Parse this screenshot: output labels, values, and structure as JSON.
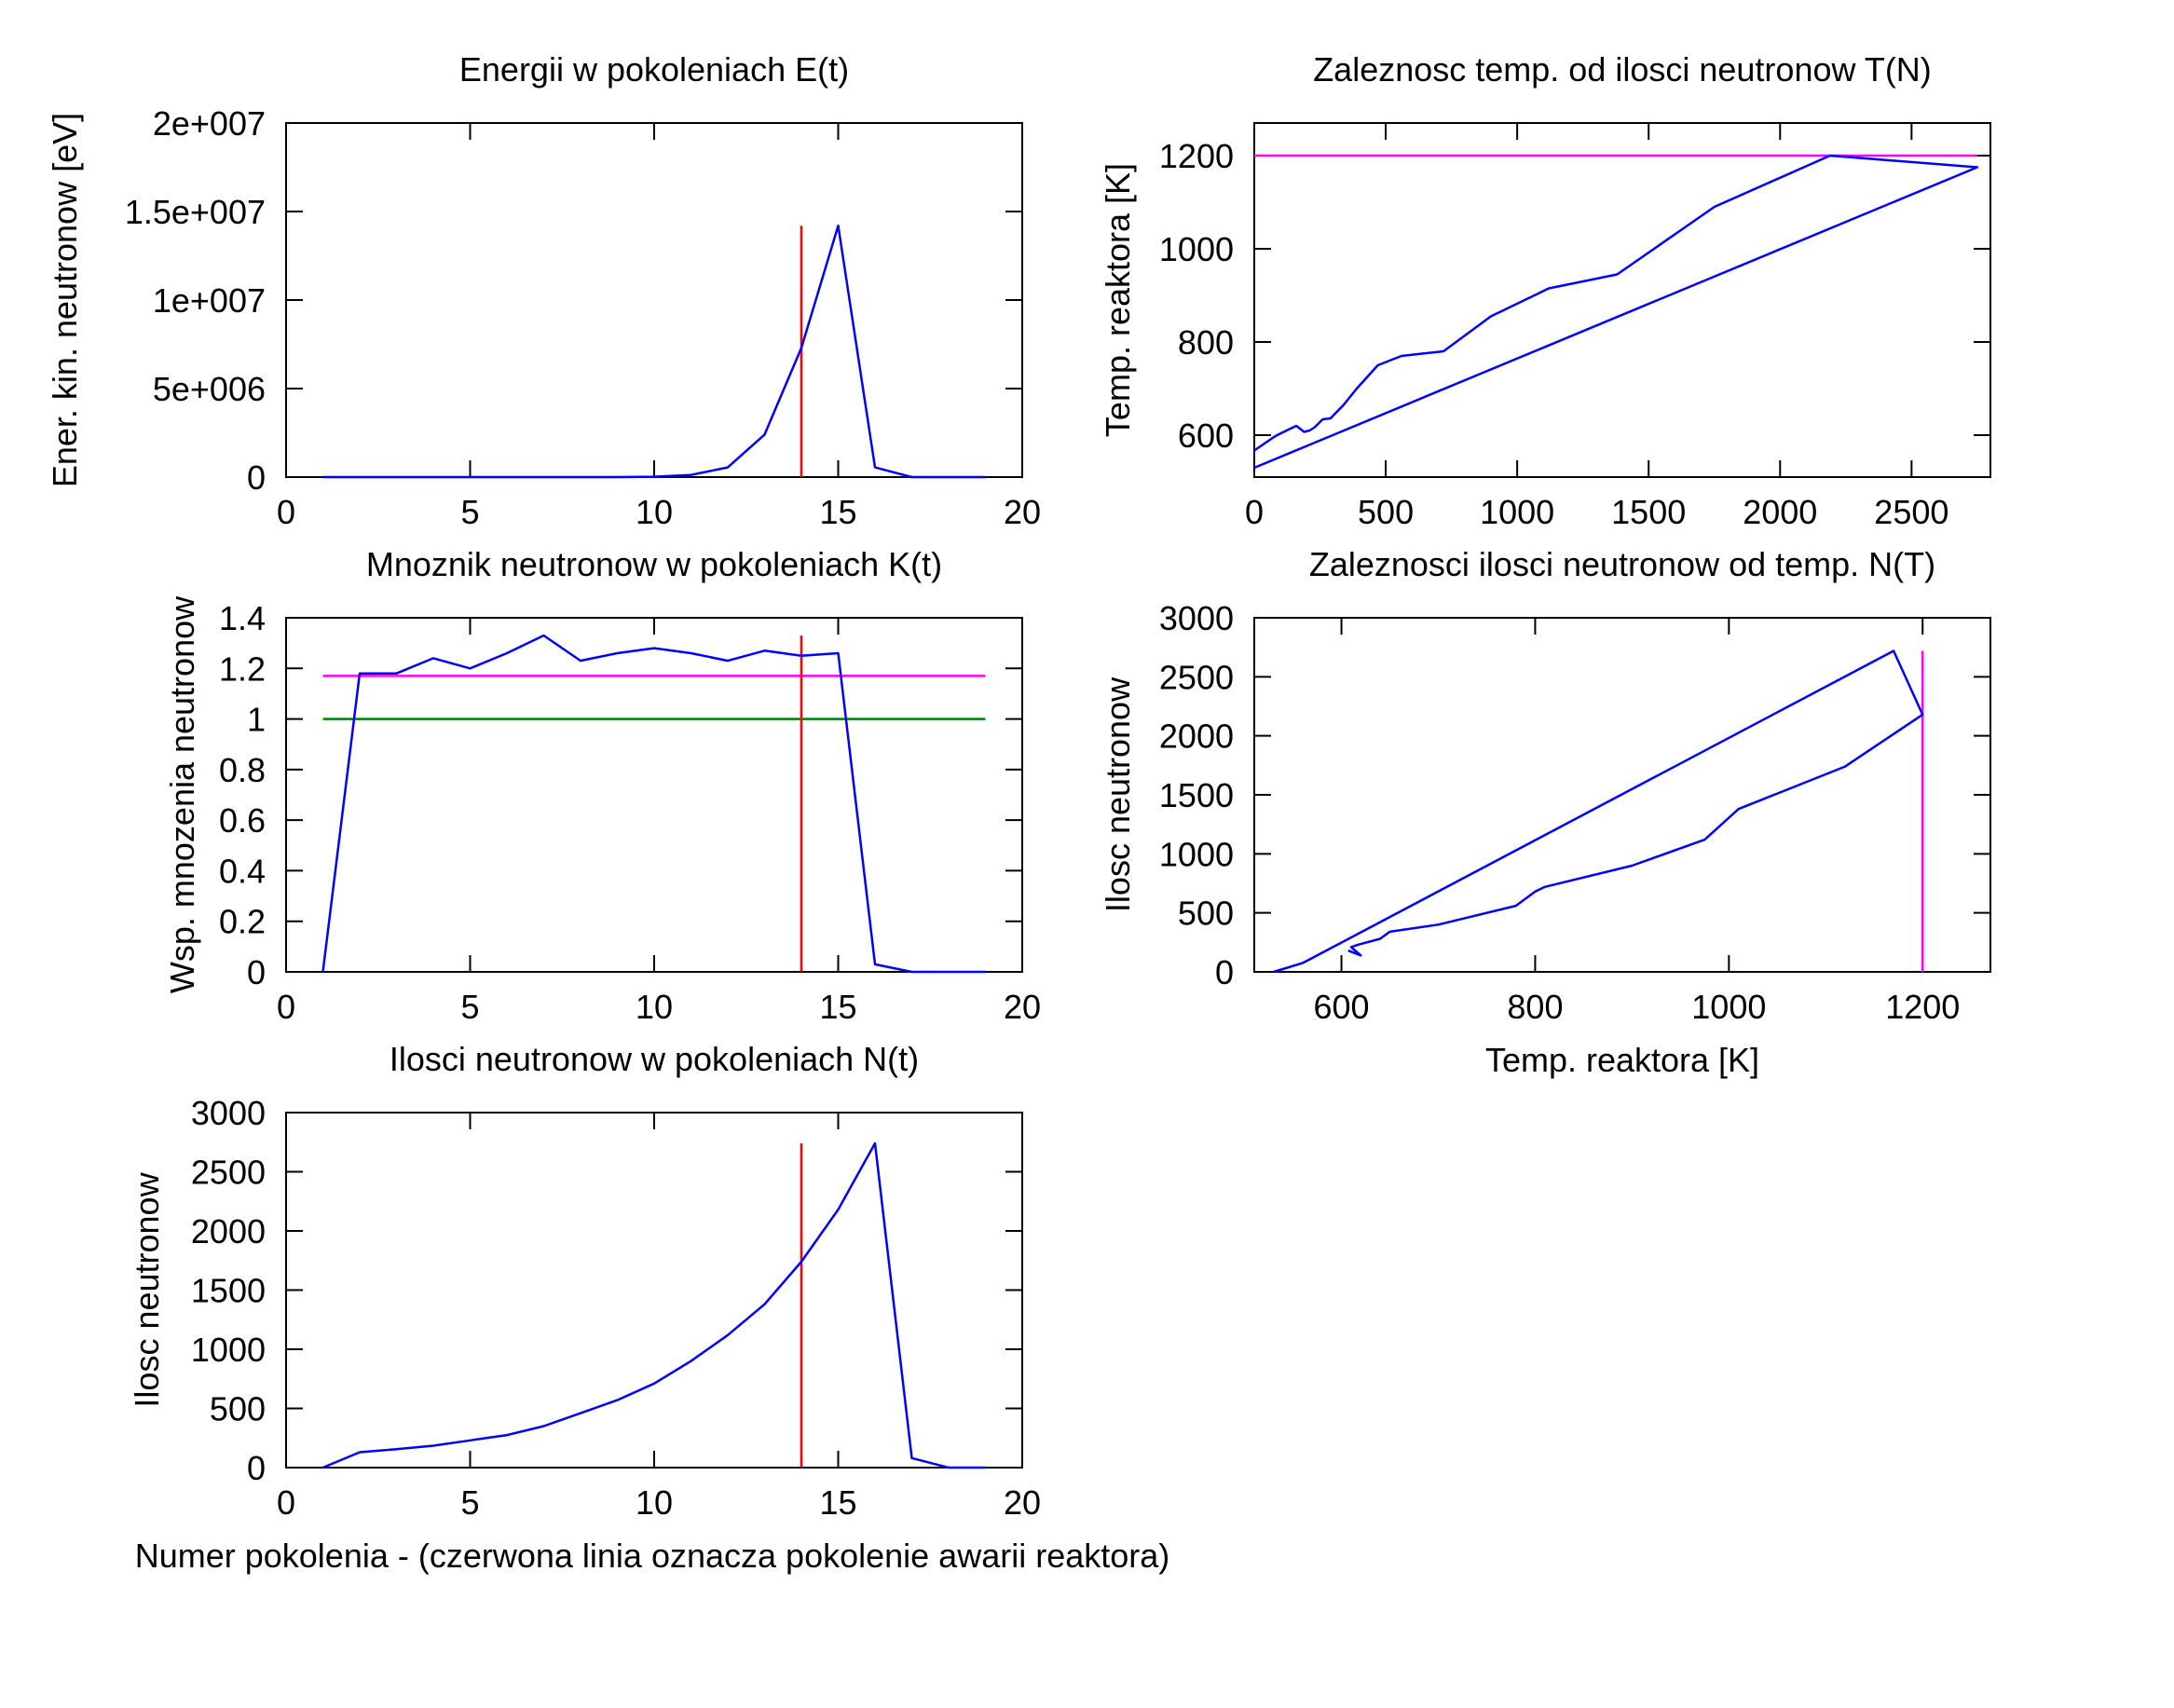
{
  "figure_note": "Numer pokolenia - (czerwona linia oznacza pokolenie awarii reaktora)",
  "chart_data": [
    {
      "id": "energy",
      "type": "line",
      "title": "Energii w pokoleniach E(t)",
      "xlabel": "",
      "ylabel": "Ener. kin. neutronow [eV]",
      "xlim": [
        0,
        20
      ],
      "ylim": [
        0,
        20000000
      ],
      "xticks": [
        0,
        5,
        10,
        15,
        20
      ],
      "xtick_labels": [
        "0",
        "5",
        "10",
        "15",
        "20"
      ],
      "yticks": [
        0,
        5000000,
        10000000,
        15000000,
        20000000
      ],
      "ytick_labels": [
        "0",
        "5e+006",
        "1e+007",
        "1.5e+007",
        "2e+007"
      ],
      "series": [
        {
          "color": "#0000ff",
          "x": [
            1,
            2,
            3,
            4,
            5,
            6,
            7,
            8,
            9,
            10,
            11,
            12,
            13,
            14,
            15,
            16,
            17,
            18,
            19
          ],
          "y": [
            0,
            0,
            0,
            0,
            0,
            0,
            0,
            0,
            0,
            20000,
            120000,
            550000,
            2400000,
            7300000,
            14200000,
            550000,
            0,
            0,
            0
          ]
        }
      ],
      "vlines": [
        {
          "x": 14,
          "y_from": 0,
          "y_to": 14200000,
          "color": "#ff0000"
        }
      ],
      "hlines": []
    },
    {
      "id": "temp_vs_n",
      "type": "line",
      "title": "Zaleznosc temp. od ilosci neutronow T(N)",
      "xlabel": "",
      "ylabel": "Temp. reaktora [K]",
      "xlim": [
        0,
        2800
      ],
      "ylim": [
        510,
        1270
      ],
      "xticks": [
        0,
        500,
        1000,
        1500,
        2000,
        2500
      ],
      "xtick_labels": [
        "0",
        "500",
        "1000",
        "1500",
        "2000",
        "2500"
      ],
      "yticks": [
        600,
        800,
        1000,
        1200
      ],
      "ytick_labels": [
        "600",
        "800",
        "1000",
        "1200"
      ],
      "series": [
        {
          "color": "#0000ff",
          "x": [
            0,
            80,
            130,
            160,
            190,
            210,
            230,
            260,
            290,
            340,
            390,
            470,
            560,
            720,
            900,
            1120,
            1380,
            1750,
            2190,
            2750,
            0
          ],
          "y": [
            567,
            598,
            612,
            620,
            607,
            610,
            617,
            634,
            636,
            665,
            700,
            750,
            770,
            780,
            855,
            915,
            945,
            1090,
            1200,
            1175,
            530
          ]
        }
      ],
      "vlines": [],
      "hlines": [
        {
          "y": 1200,
          "x_from": 0,
          "x_to": 2750,
          "color": "#ff00ff"
        }
      ]
    },
    {
      "id": "multiplier",
      "type": "line",
      "title": "Mnoznik neutronow w pokoleniach K(t)",
      "xlabel": "",
      "ylabel": "Wsp. mnozenia neutronow",
      "xlim": [
        0,
        20
      ],
      "ylim": [
        0,
        1.4
      ],
      "xticks": [
        0,
        5,
        10,
        15,
        20
      ],
      "xtick_labels": [
        "0",
        "5",
        "10",
        "15",
        "20"
      ],
      "yticks": [
        0,
        0.2,
        0.4,
        0.6,
        0.8,
        1,
        1.2,
        1.4
      ],
      "ytick_labels": [
        "0",
        "0.2",
        "0.4",
        "0.6",
        "0.8",
        "1",
        "1.2",
        "1.4"
      ],
      "series": [
        {
          "color": "#0000ff",
          "x": [
            1,
            2,
            3,
            4,
            5,
            6,
            7,
            8,
            9,
            10,
            11,
            12,
            13,
            14,
            15,
            16,
            17,
            18,
            19
          ],
          "y": [
            0,
            1.18,
            1.18,
            1.24,
            1.2,
            1.26,
            1.33,
            1.23,
            1.26,
            1.28,
            1.26,
            1.23,
            1.27,
            1.25,
            1.26,
            0.03,
            0,
            0,
            0
          ]
        }
      ],
      "vlines": [
        {
          "x": 14,
          "y_from": 0,
          "y_to": 1.33,
          "color": "#ff0000"
        }
      ],
      "hlines": [
        {
          "y": 1.17,
          "x_from": 1,
          "x_to": 19,
          "color": "#ff00ff"
        },
        {
          "y": 1.0,
          "x_from": 1,
          "x_to": 19,
          "color": "#008000"
        }
      ]
    },
    {
      "id": "n_vs_temp",
      "type": "line",
      "title": "Zaleznosci ilosci neutronow od temp. N(T)",
      "xlabel": "Temp. reaktora [K]",
      "ylabel": "Ilosc neutronow",
      "xlim": [
        510,
        1270
      ],
      "ylim": [
        0,
        3000
      ],
      "xticks": [
        600,
        800,
        1000,
        1200
      ],
      "xtick_labels": [
        "600",
        "800",
        "1000",
        "1200"
      ],
      "yticks": [
        0,
        500,
        1000,
        1500,
        2000,
        2500,
        3000
      ],
      "ytick_labels": [
        "0",
        "500",
        "1000",
        "1500",
        "2000",
        "2500",
        "3000"
      ],
      "series": [
        {
          "color": "#0000ff",
          "x": [
            530,
            560,
            1170,
            1200,
            1120,
            1010,
            975,
            900,
            810,
            800,
            780,
            700,
            650,
            640,
            617,
            610,
            620,
            607
          ],
          "y": [
            0,
            75,
            2720,
            2180,
            1740,
            1380,
            1120,
            900,
            720,
            680,
            560,
            400,
            340,
            280,
            230,
            210,
            140,
            180
          ]
        }
      ],
      "vlines": [
        {
          "x": 1200,
          "y_from": 0,
          "y_to": 2720,
          "color": "#ff00ff"
        }
      ],
      "hlines": []
    },
    {
      "id": "count",
      "type": "line",
      "title": "Ilosci neutronow w pokoleniach N(t)",
      "xlabel": "",
      "ylabel": "Ilosc neutronow",
      "xlim": [
        0,
        20
      ],
      "ylim": [
        0,
        3000
      ],
      "xticks": [
        0,
        5,
        10,
        15,
        20
      ],
      "xtick_labels": [
        "0",
        "5",
        "10",
        "15",
        "20"
      ],
      "yticks": [
        0,
        500,
        1000,
        1500,
        2000,
        2500,
        3000
      ],
      "ytick_labels": [
        "0",
        "500",
        "1000",
        "1500",
        "2000",
        "2500",
        "3000"
      ],
      "series": [
        {
          "color": "#0000ff",
          "x": [
            1,
            2,
            3,
            4,
            5,
            6,
            7,
            8,
            9,
            10,
            11,
            12,
            13,
            14,
            15,
            16,
            17,
            18,
            19
          ],
          "y": [
            0,
            130,
            155,
            185,
            230,
            275,
            350,
            460,
            570,
            710,
            900,
            1120,
            1380,
            1740,
            2180,
            2740,
            80,
            0,
            0
          ]
        }
      ],
      "vlines": [
        {
          "x": 14,
          "y_from": 0,
          "y_to": 2740,
          "color": "#ff0000"
        }
      ],
      "hlines": []
    }
  ]
}
